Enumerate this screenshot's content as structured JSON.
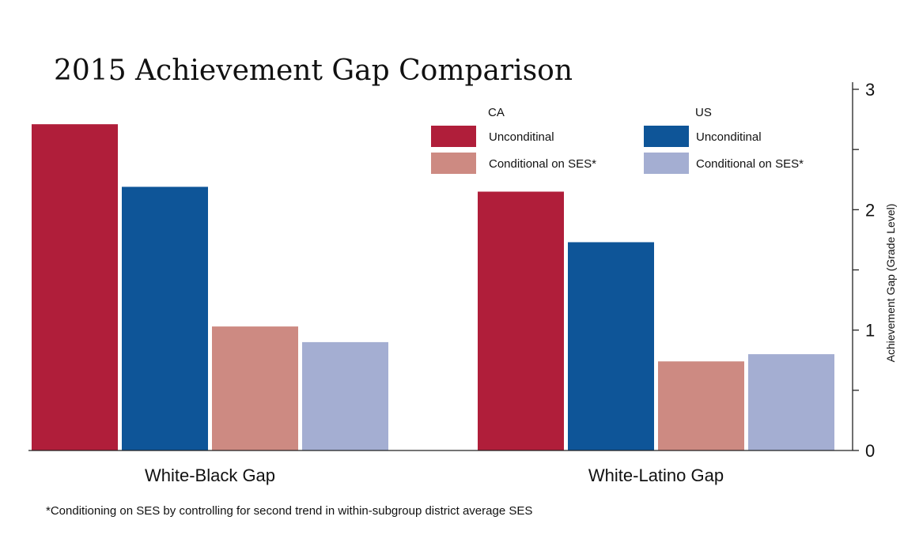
{
  "chart_data": {
    "type": "bar",
    "title": "2015 Achievement Gap Comparison",
    "ylabel": "Achievement Gap (Grade Level)",
    "xlabel": "",
    "categories": [
      "White-Black Gap",
      "White-Latino Gap"
    ],
    "series": [
      {
        "name": "CA Unconditinal",
        "color": "#b01e3a",
        "values": [
          2.71,
          2.15
        ]
      },
      {
        "name": "US Unconditinal",
        "color": "#0e5598",
        "values": [
          2.19,
          1.73
        ]
      },
      {
        "name": "CA Conditional on SES*",
        "color": "#cd8a82",
        "values": [
          1.03,
          0.74
        ]
      },
      {
        "name": "US Conditional on SES*",
        "color": "#a4aed2",
        "values": [
          0.9,
          0.8
        ]
      }
    ],
    "ylim": [
      0,
      3
    ],
    "yticks": [
      0,
      1,
      2,
      3
    ],
    "ytick_labels": [
      "0",
      "1",
      "2",
      "3"
    ],
    "yaxis_position": "right",
    "grid": false,
    "legend": {
      "placement": "top-right",
      "group_titles": [
        "CA",
        "US"
      ],
      "entries": [
        {
          "label": "Unconditinal",
          "series": 0
        },
        {
          "label": "Conditional on SES*",
          "series": 2
        },
        {
          "label": "Unconditinal",
          "series": 1
        },
        {
          "label": "Conditional on SES*",
          "series": 3
        }
      ]
    },
    "note": "*Conditioning on SES by controlling for second trend in within-subgroup district average SES"
  }
}
